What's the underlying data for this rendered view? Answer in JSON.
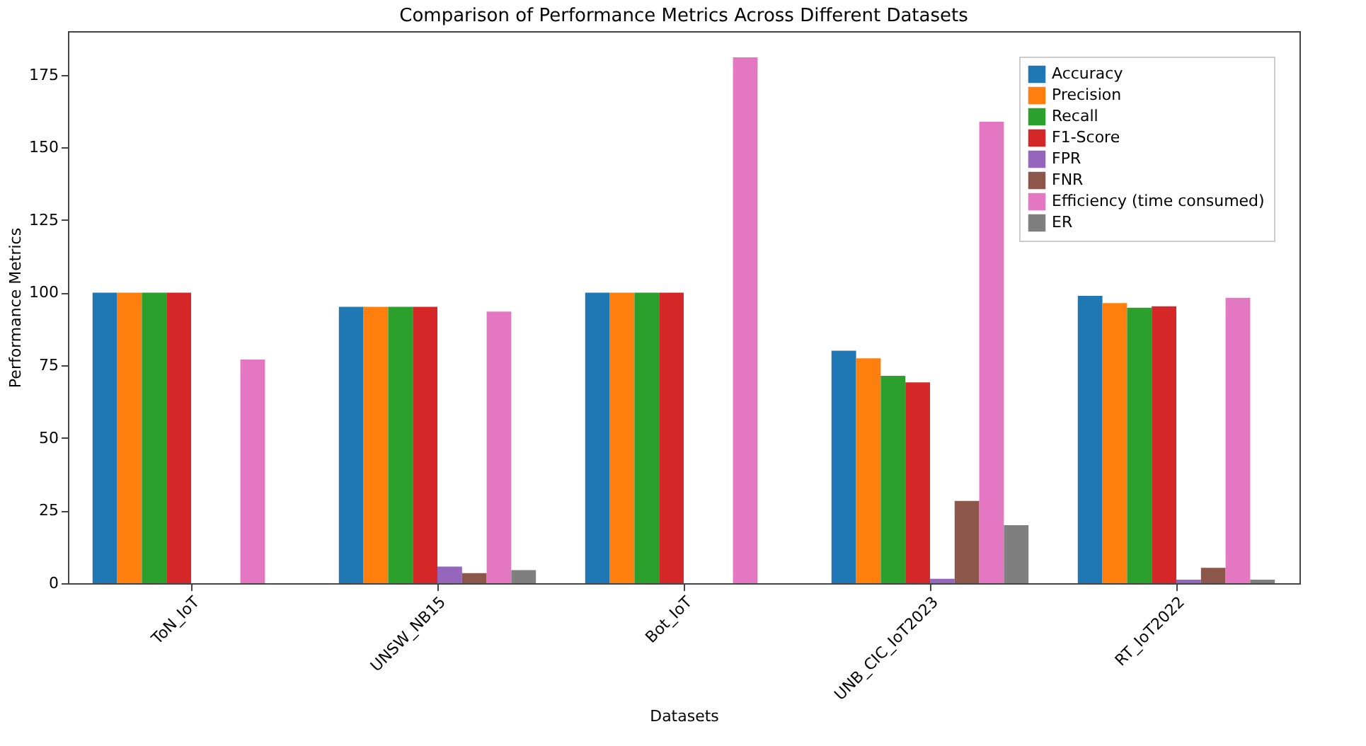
{
  "chart_data": {
    "type": "bar",
    "title": "Comparison of Performance Metrics Across Different Datasets",
    "xlabel": "Datasets",
    "ylabel": "Performance Metrics",
    "categories": [
      "ToN_IoT",
      "UNSW_NB15",
      "Bot_IoT",
      "UNB_CIC_IoT2023",
      "RT_IoT2022"
    ],
    "series": [
      {
        "name": "Accuracy",
        "color": "#1f77b4",
        "values": [
          100,
          95.1,
          100,
          80,
          98.9
        ]
      },
      {
        "name": "Precision",
        "color": "#ff7f0e",
        "values": [
          100,
          95.1,
          100,
          77.4,
          96.4
        ]
      },
      {
        "name": "Recall",
        "color": "#2ca02c",
        "values": [
          100,
          95.1,
          100,
          71.4,
          94.8
        ]
      },
      {
        "name": "F1-Score",
        "color": "#d62728",
        "values": [
          100,
          95.1,
          100,
          69.1,
          95.3
        ]
      },
      {
        "name": "FPR",
        "color": "#9467bd",
        "values": [
          0,
          5.7,
          0,
          1.5,
          1.2
        ]
      },
      {
        "name": "FNR",
        "color": "#8c564b",
        "values": [
          0,
          3.5,
          0,
          28.3,
          5.3
        ]
      },
      {
        "name": "Efficiency (time consumed)",
        "color": "#e377c2",
        "values": [
          77,
          93.5,
          181,
          158.8,
          98.2
        ]
      },
      {
        "name": "ER",
        "color": "#7f7f7f",
        "values": [
          0,
          4.5,
          0,
          20,
          1.2
        ]
      }
    ],
    "ylim": [
      0,
      190
    ],
    "yticks": [
      0,
      25,
      50,
      75,
      100,
      125,
      150,
      175
    ],
    "grid": false,
    "legend": "top right"
  }
}
